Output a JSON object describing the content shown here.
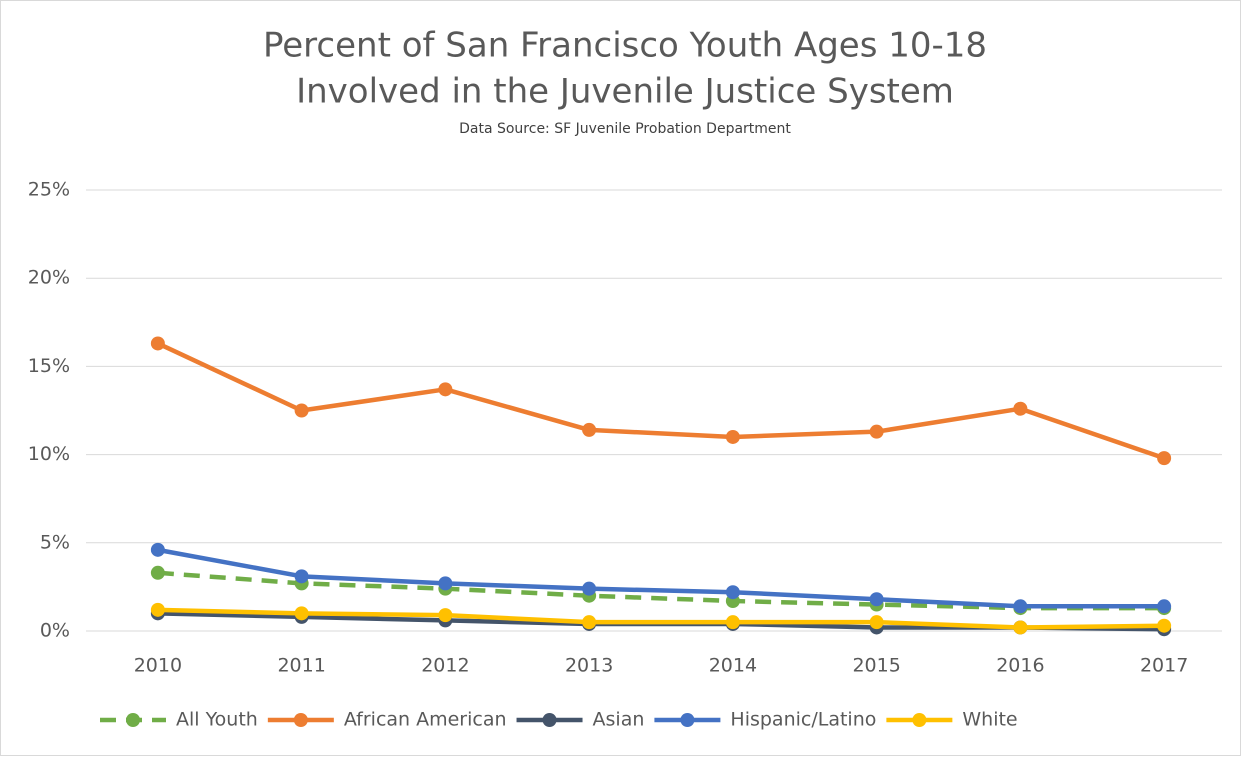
{
  "chart_data": {
    "type": "line",
    "title": [
      "Percent of San Francisco Youth Ages 10-18",
      "Involved in the Juvenile Justice System"
    ],
    "subtitle": "Data Source: SF Juvenile Probation Department",
    "categories": [
      "2010",
      "2011",
      "2012",
      "2013",
      "2014",
      "2015",
      "2016",
      "2017"
    ],
    "series": [
      {
        "name": "All Youth",
        "color": "#70ad47",
        "dashed": true,
        "values": [
          3.3,
          2.7,
          2.4,
          2.0,
          1.7,
          1.5,
          1.3,
          1.3
        ]
      },
      {
        "name": "African American",
        "color": "#ed7d31",
        "values": [
          16.3,
          12.5,
          13.7,
          11.4,
          11.0,
          11.3,
          12.6,
          9.8
        ]
      },
      {
        "name": "Asian",
        "color": "#44546a",
        "values": [
          1.0,
          0.8,
          0.6,
          0.4,
          0.4,
          0.2,
          0.2,
          0.1
        ]
      },
      {
        "name": "Hispanic/Latino",
        "color": "#4472c4",
        "values": [
          4.6,
          3.1,
          2.7,
          2.4,
          2.2,
          1.8,
          1.4,
          1.4
        ]
      },
      {
        "name": "White",
        "color": "#ffc000",
        "values": [
          1.2,
          1.0,
          0.9,
          0.5,
          0.5,
          0.5,
          0.2,
          0.3
        ]
      }
    ],
    "ylim": [
      0,
      25
    ],
    "yticks": [
      {
        "value": 0,
        "label": "0%"
      },
      {
        "value": 5,
        "label": "5%"
      },
      {
        "value": 10,
        "label": "10%"
      },
      {
        "value": 15,
        "label": "15%"
      },
      {
        "value": 20,
        "label": "20%"
      },
      {
        "value": 25,
        "label": "25%"
      }
    ],
    "grid": true,
    "legend": "bottom"
  }
}
